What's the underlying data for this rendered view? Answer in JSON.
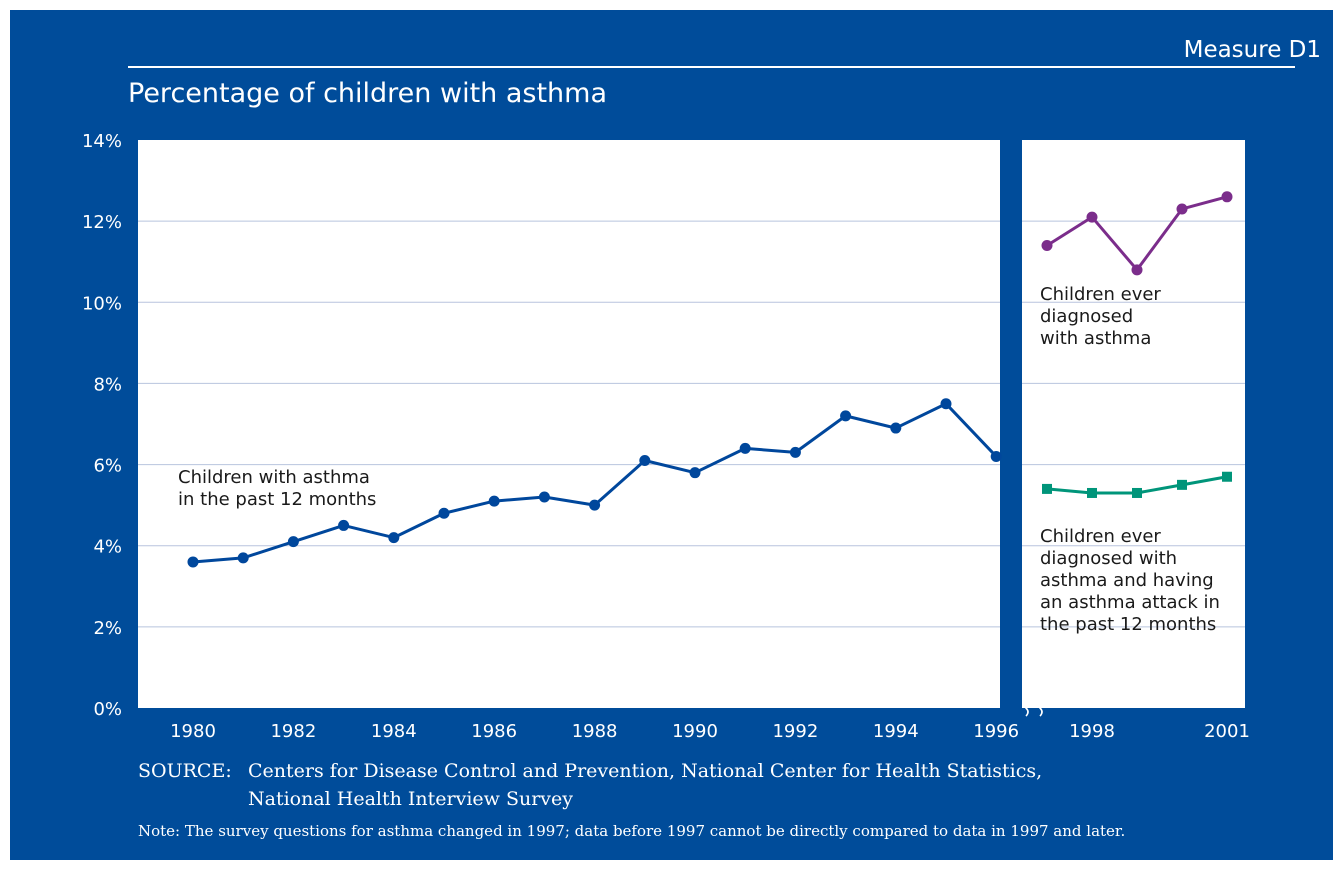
{
  "header": {
    "measure": "Measure D1",
    "title": "Percentage of children with asthma"
  },
  "colors": {
    "background": "#004c9a",
    "plot": "#ffffff",
    "grid": "#b8c4de",
    "series_past12": "#00479c",
    "series_ever": "#7b2d8b",
    "series_attack": "#00957a"
  },
  "chart_data": {
    "type": "line",
    "title": "Percentage of children with asthma",
    "xlabel": "",
    "ylabel": "",
    "ylim": [
      0,
      14
    ],
    "yticks": [
      0,
      2,
      4,
      6,
      8,
      10,
      12,
      14
    ],
    "ytick_labels": [
      "0%",
      "2%",
      "4%",
      "6%",
      "8%",
      "10%",
      "12%",
      "14%"
    ],
    "xlim": [
      1979,
      2002
    ],
    "xticks": [
      1980,
      1982,
      1984,
      1986,
      1988,
      1990,
      1992,
      1994,
      1996,
      1998,
      2001
    ],
    "xtick_labels": [
      "1980",
      "1982",
      "1984",
      "1986",
      "1988",
      "1990",
      "1992",
      "1994",
      "1996",
      "1998",
      "2001"
    ],
    "grid": true,
    "axis_break_between": [
      1996,
      1997
    ],
    "series": [
      {
        "label": "Children with asthma in the past 12 months",
        "label_lines": [
          "Children with asthma",
          "in the past 12 months"
        ],
        "color_key": "series_past12",
        "marker": "circle",
        "x": [
          1980,
          1981,
          1982,
          1983,
          1984,
          1985,
          1986,
          1987,
          1988,
          1989,
          1990,
          1991,
          1992,
          1993,
          1994,
          1995,
          1996
        ],
        "y": [
          3.6,
          3.7,
          4.1,
          4.5,
          4.2,
          4.8,
          5.1,
          5.2,
          5.0,
          6.1,
          5.8,
          6.4,
          6.3,
          7.2,
          6.9,
          7.5,
          6.2
        ]
      },
      {
        "label": "Children ever diagnosed with asthma",
        "label_lines": [
          "Children ever",
          "diagnosed",
          "with asthma"
        ],
        "color_key": "series_ever",
        "marker": "circle",
        "x": [
          1997,
          1998,
          1999,
          2000,
          2001
        ],
        "y": [
          11.4,
          12.1,
          10.8,
          12.3,
          12.6
        ]
      },
      {
        "label": "Children ever diagnosed with asthma and having an asthma attack in the past 12 months",
        "label_lines": [
          "Children ever",
          "diagnosed with",
          "asthma and having",
          "an asthma attack in",
          "the past 12 months"
        ],
        "color_key": "series_attack",
        "marker": "square",
        "x": [
          1997,
          1998,
          1999,
          2000,
          2001
        ],
        "y": [
          5.4,
          5.3,
          5.3,
          5.5,
          5.7
        ]
      }
    ]
  },
  "footer": {
    "source_label": "SOURCE:",
    "source_line1": "Centers for Disease Control and Prevention, National Center for Health Statistics,",
    "source_line2": "National Health Interview Survey",
    "note": "Note: The survey questions for asthma changed in 1997; data before 1997 cannot be directly compared to data in 1997 and later."
  }
}
